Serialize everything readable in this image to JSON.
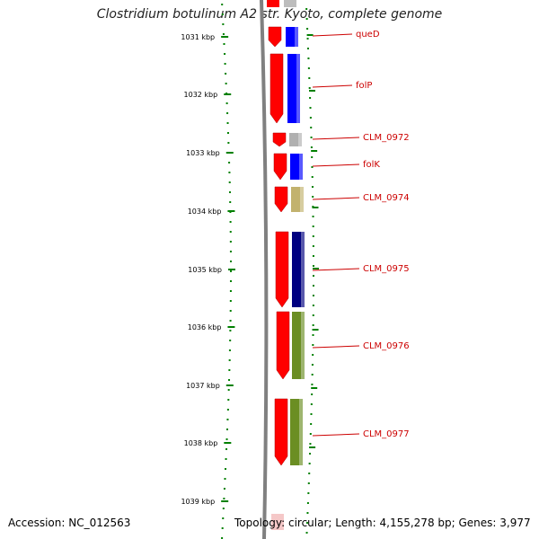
{
  "title": "Clostridium botulinum A2 str. Kyoto, complete genome",
  "footer": {
    "accession": "Accession: NC_012563",
    "stats": "Topology: circular; Length: 4,155,278 bp; Genes: 3,977"
  },
  "colors": {
    "frame_strand": "#ff0000",
    "cog_blue": "#0000ff",
    "cog_navy": "#000080",
    "cog_grey": "#b0b0b0",
    "cog_tan": "#c2b26e",
    "cog_olive": "#6b8e23",
    "backbone": "#808080",
    "ruler": "#008000",
    "label": "#cc0000"
  },
  "ruler": {
    "unit": "kbp",
    "ticks": [
      "1031 kbp",
      "1032 kbp",
      "1033 kbp",
      "1034 kbp",
      "1035 kbp",
      "1036 kbp",
      "1037 kbp",
      "1038 kbp",
      "1039 kbp"
    ]
  },
  "genes": [
    {
      "label": "queD",
      "cog": "blue"
    },
    {
      "label": "folP",
      "cog": "blue"
    },
    {
      "label": "CLM_0972",
      "cog": "grey"
    },
    {
      "label": "folK",
      "cog": "blue"
    },
    {
      "label": "CLM_0974",
      "cog": "tan"
    },
    {
      "label": "CLM_0975",
      "cog": "navy"
    },
    {
      "label": "CLM_0976",
      "cog": "olive"
    },
    {
      "label": "CLM_0977",
      "cog": "olive"
    }
  ]
}
